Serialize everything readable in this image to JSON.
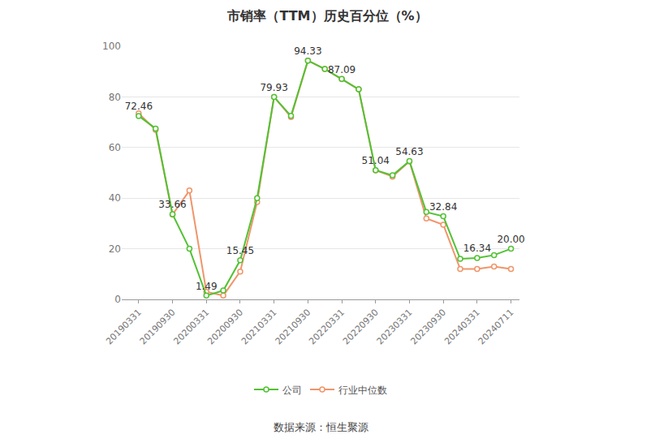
{
  "chart_data": {
    "type": "line",
    "title": "市销率（TTM）历史百分位（%）",
    "categories": [
      "20190331",
      null,
      "20190930",
      null,
      "20200331",
      null,
      "20200930",
      null,
      "20210331",
      null,
      "20210930",
      null,
      "20220331",
      null,
      "20220930",
      null,
      "20230331",
      null,
      "20230930",
      null,
      "20240331",
      null,
      "20240711"
    ],
    "series": [
      {
        "name": "公司",
        "color": "#52c234",
        "marker": "circle",
        "values": [
          72.46,
          67.5,
          33.66,
          20,
          1.49,
          3.5,
          15.45,
          40,
          79.93,
          72.5,
          94.33,
          91,
          87.09,
          83,
          51.04,
          49,
          54.63,
          34.5,
          32.84,
          16,
          16.34,
          17.5,
          20.0
        ],
        "value_labels": [
          "72.46",
          null,
          "33.66",
          null,
          "1.49",
          null,
          "15.45",
          null,
          "79.93",
          null,
          "94.33",
          null,
          "87.09",
          null,
          "51.04",
          null,
          "54.63",
          null,
          "32.84",
          null,
          "16.34",
          null,
          "20.00"
        ]
      },
      {
        "name": "行业中位数",
        "color": "#f0956a",
        "marker": "circle",
        "values": [
          73.5,
          67,
          33.5,
          43,
          3,
          1.5,
          11,
          38.5,
          80,
          72,
          94.33,
          91,
          87,
          83,
          51,
          48.5,
          54.5,
          32,
          29.5,
          12,
          12,
          13,
          12
        ]
      }
    ],
    "ylim": [
      0,
      100
    ],
    "yticks": [
      0,
      20,
      40,
      60,
      80,
      100
    ],
    "grid": true,
    "legend": "bottom",
    "annotations": [
      "数据来源：恒生聚源"
    ]
  }
}
